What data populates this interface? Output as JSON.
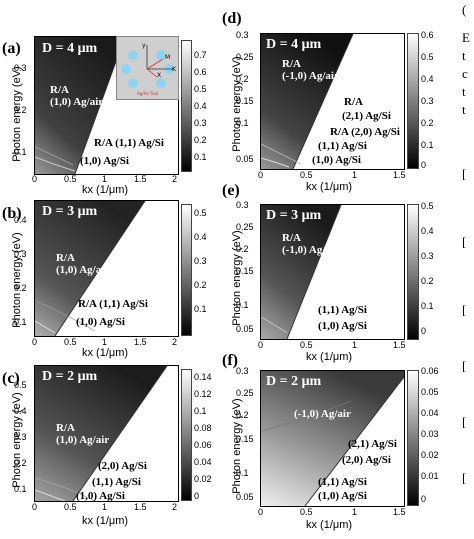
{
  "labels": {
    "a": "(a)",
    "b": "(b)",
    "c": "(c)",
    "d": "(d)",
    "e": "(e)",
    "f": "(f)",
    "ylabel": "Photon energy (eV)",
    "xlabel": "kx (1/μm)"
  },
  "left_panels": {
    "a": {
      "title": "D = 4 μm",
      "yticks": [
        "0.1",
        "0.2",
        "0.3"
      ],
      "xticks": [
        "0",
        "0.5",
        "1",
        "1.5",
        "2"
      ],
      "cbar_ticks": [
        "0.7",
        "0.6",
        "0.5",
        "0.4",
        "0.3",
        "0.2",
        "0.1"
      ],
      "ann_ra": "R/A",
      "ann_agair": "(1,0) Ag/air",
      "ann_11": "R/A (1,1) Ag/Si",
      "ann_10": "(1,0) Ag/Si",
      "inset": {
        "y": "y",
        "m": "M",
        "x": "X",
        "k": "K",
        "caption": "Ag/Air Tool"
      }
    },
    "b": {
      "title": "D = 3 μm",
      "yticks": [
        "0.1",
        "0.2",
        "0.3",
        "0.4"
      ],
      "xticks": [
        "0",
        "0.5",
        "1",
        "1.5",
        "2"
      ],
      "cbar_ticks": [
        "0.5",
        "0.4",
        "0.3",
        "0.2",
        "0.1"
      ],
      "ann_ra": "R/A",
      "ann_agair": "(1,0) Ag/air",
      "ann_11": "R/A (1,1) Ag/Si",
      "ann_10": "(1,0) Ag/Si"
    },
    "c": {
      "title": "D = 2 μm",
      "yticks": [
        "0.1",
        "0.2",
        "0.3",
        "0.4",
        "0.5"
      ],
      "xticks": [
        "0",
        "0.5",
        "1",
        "1.5",
        "2"
      ],
      "cbar_ticks": [
        "0.14",
        "0.12",
        "0.1",
        "0.08",
        "0.06",
        "0.04",
        "0.02",
        "0"
      ],
      "ann_ra": "R/A",
      "ann_agair": "(1,0) Ag/air",
      "ann_20": "(2,0) Ag/Si",
      "ann_11": "(1,1) Ag/Si",
      "ann_10": "(1,0) Ag/Si"
    }
  },
  "right_panels": {
    "d": {
      "title": "D = 4 μm",
      "yticks": [
        "0.3",
        "0.25",
        "0.2",
        "0.15",
        "0.1",
        "0.05"
      ],
      "xticks": [
        "0",
        "0.5",
        "1",
        "1.5"
      ],
      "cbar_ticks": [
        "0.6",
        "0.5",
        "0.4",
        "0.3",
        "0.2",
        "0.1",
        "0"
      ],
      "ann_ra": "R/A",
      "ann_agair": "(-1,0) Ag/air",
      "ann_ra2": "R/A",
      "ann_21": "(2,1) Ag/Si",
      "ann_20": "R/A (2,0) Ag/Si",
      "ann_11": "(1,1) Ag/Si",
      "ann_10": "(1,0) Ag/Si"
    },
    "e": {
      "title": "D = 3 μm",
      "yticks": [
        "0.3",
        "0.25",
        "0.2",
        "0.15",
        "0.1",
        "0.05"
      ],
      "xticks": [
        "0",
        "0.5",
        "1",
        "1.5"
      ],
      "cbar_ticks": [
        "0.5",
        "0.4",
        "0.3",
        "0.2",
        "0.1",
        "0"
      ],
      "ann_ra": "R/A",
      "ann_agair": "(-1,0) Ag/air",
      "ann_11": "(1,1) Ag/Si",
      "ann_10": "(1,0) Ag/Si"
    },
    "f": {
      "title": "D = 2 μm",
      "yticks": [
        "0.3",
        "0.25",
        "0.2",
        "0.15",
        "0.1",
        "0.05"
      ],
      "xticks": [
        "0",
        "0.5",
        "1",
        "1.5"
      ],
      "cbar_ticks": [
        "0.06",
        "0.05",
        "0.04",
        "0.03",
        "0.02",
        "0.01",
        "0"
      ],
      "ann_agair": "(-1,0) Ag/air",
      "ann_21": "(2,1) Ag/Si",
      "ann_20": "(2,0) Ag/Si",
      "ann_11": "(1,1) Ag/Si",
      "ann_10": "(1,0) Ag/Si"
    }
  },
  "edge_text": {
    "top": "(",
    "lines": [
      "E",
      "t",
      "c",
      "t",
      "t"
    ],
    "brackets": [
      "[",
      "[",
      "[",
      "[",
      "[",
      "["
    ]
  }
}
